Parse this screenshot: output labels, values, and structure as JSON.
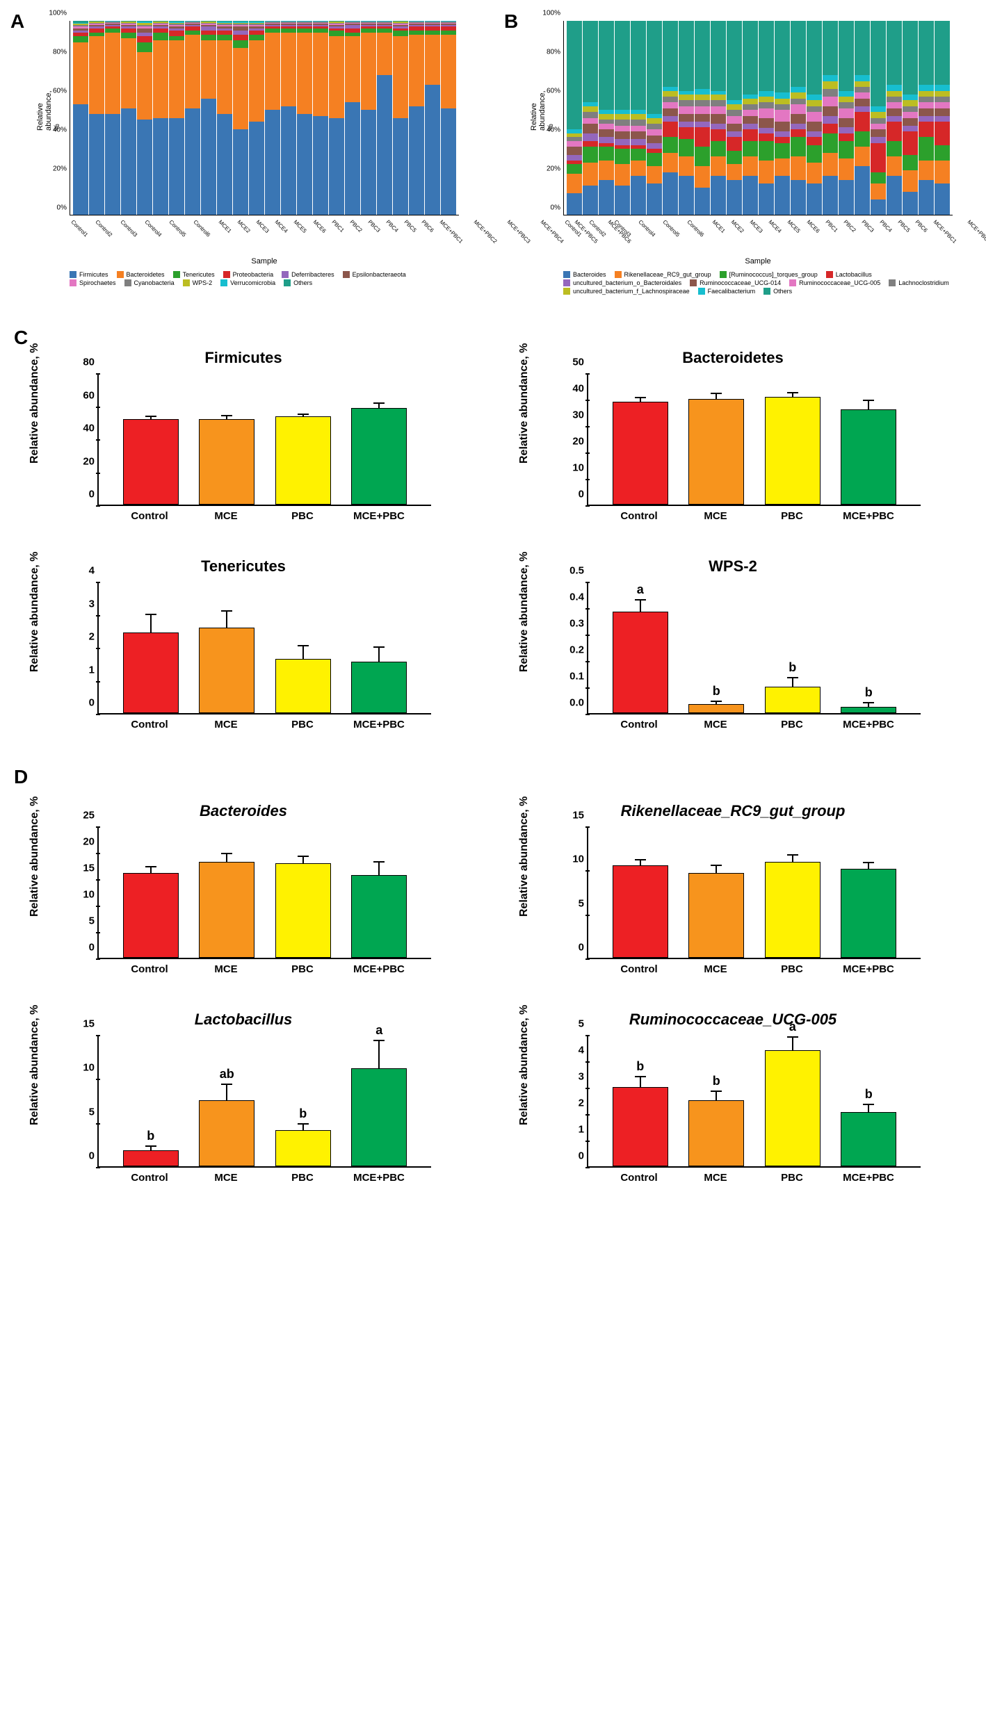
{
  "panelA": {
    "label": "A",
    "y_label": "Relative abundance, %",
    "x_label": "Sample",
    "y_ticks": [
      0,
      20,
      40,
      60,
      80,
      100
    ],
    "y_tick_suffix": "%",
    "samples": [
      "Control1",
      "Control2",
      "Control3",
      "Control4",
      "Control5",
      "Control6",
      "MCE1",
      "MCE2",
      "MCE3",
      "MCE4",
      "MCE5",
      "MCE6",
      "PBC1",
      "PBC2",
      "PBC3",
      "PBC4",
      "PBC5",
      "PBC6",
      "MCE+PBC1",
      "MCE+PBC2",
      "MCE+PBC3",
      "MCE+PBC4",
      "MCE+PBC5",
      "MCE+PBC6"
    ],
    "taxa": [
      "Firmicutes",
      "Bacteroidetes",
      "Tenericutes",
      "Proteobacteria",
      "Deferribacteres",
      "Epsilonbacteraeota",
      "Spirochaetes",
      "Cyanobacteria",
      "WPS-2",
      "Verrucomicrobia",
      "Others"
    ],
    "colors": [
      "#3a76b4",
      "#f58022",
      "#2ca02c",
      "#d62728",
      "#9467bd",
      "#8c564b",
      "#e377c2",
      "#7f7f7f",
      "#bcbd22",
      "#17becf",
      "#1f9e89"
    ],
    "stacks": [
      [
        57,
        32,
        3,
        2,
        1,
        1,
        1,
        1,
        0.5,
        0.5,
        1
      ],
      [
        52,
        40,
        2,
        2,
        1,
        1,
        0.5,
        0.5,
        0.5,
        0.3,
        0.2
      ],
      [
        52,
        42,
        2,
        1,
        1,
        0.5,
        0.5,
        0.5,
        0.2,
        0.2,
        0.1
      ],
      [
        55,
        36,
        3,
        2,
        1,
        1,
        0.5,
        0.5,
        0.5,
        0.3,
        0.2
      ],
      [
        49,
        35,
        5,
        3,
        2,
        2,
        1,
        1,
        1,
        0.5,
        0.5
      ],
      [
        50,
        40,
        4,
        2,
        1,
        1,
        0.5,
        0.5,
        0.5,
        0.3,
        0.2
      ],
      [
        50,
        40,
        2,
        3,
        1,
        1,
        1,
        0.5,
        0.5,
        0.5,
        0.5
      ],
      [
        55,
        38,
        2,
        2,
        1,
        0.5,
        0.5,
        0.5,
        0.2,
        0.2,
        0.1
      ],
      [
        60,
        30,
        3,
        2,
        2,
        1,
        0.5,
        0.5,
        0.5,
        0.3,
        0.2
      ],
      [
        52,
        38,
        3,
        2,
        1,
        1,
        1,
        0.5,
        0.5,
        0.5,
        0.5
      ],
      [
        44,
        42,
        4,
        3,
        2,
        2,
        1,
        0.5,
        0.5,
        0.5,
        0.5
      ],
      [
        48,
        42,
        3,
        2,
        1,
        1,
        1,
        0.5,
        0.5,
        0.5,
        0.5
      ],
      [
        54,
        40,
        2,
        1,
        1,
        0.5,
        0.5,
        0.5,
        0.2,
        0.2,
        0.1
      ],
      [
        56,
        38,
        2,
        1,
        1,
        0.5,
        0.5,
        0.5,
        0.2,
        0.2,
        0.1
      ],
      [
        52,
        42,
        2,
        1,
        1,
        0.5,
        0.5,
        0.5,
        0.2,
        0.2,
        0.1
      ],
      [
        51,
        43,
        2,
        1,
        1,
        0.5,
        0.5,
        0.5,
        0.2,
        0.2,
        0.1
      ],
      [
        50,
        42,
        3,
        1,
        1,
        1,
        0.5,
        0.5,
        0.5,
        0.3,
        0.2
      ],
      [
        58,
        34,
        2,
        2,
        2,
        0.5,
        0.5,
        0.5,
        0.2,
        0.2,
        0.1
      ],
      [
        54,
        40,
        2,
        1,
        1,
        0.5,
        0.5,
        0.5,
        0.2,
        0.2,
        0.1
      ],
      [
        72,
        22,
        2,
        1,
        1,
        0.5,
        0.5,
        0.5,
        0.2,
        0.2,
        0.1
      ],
      [
        50,
        42,
        3,
        1,
        1,
        1,
        0.5,
        0.5,
        0.5,
        0.3,
        0.2
      ],
      [
        56,
        37,
        2,
        2,
        1,
        0.5,
        0.5,
        0.5,
        0.2,
        0.2,
        0.1
      ],
      [
        67,
        26,
        2,
        2,
        1,
        0.5,
        0.5,
        0.5,
        0.2,
        0.2,
        0.1
      ],
      [
        55,
        38,
        2,
        2,
        1,
        0.5,
        0.5,
        0.5,
        0.2,
        0.2,
        0.1
      ]
    ]
  },
  "panelB": {
    "label": "B",
    "y_label": "Relative abundance, %",
    "x_label": "Sample",
    "y_ticks": [
      0,
      20,
      40,
      60,
      80,
      100
    ],
    "y_tick_suffix": "%",
    "samples": [
      "Control1",
      "Control2",
      "Control3",
      "Control4",
      "Control5",
      "Control6",
      "MCE1",
      "MCE2",
      "MCE3",
      "MCE4",
      "MCE5",
      "MCE6",
      "PBC1",
      "PBC2",
      "PBC3",
      "PBC4",
      "PBC5",
      "PBC6",
      "MCE+PBC1",
      "MCE+PBC2",
      "MCE+PBC3",
      "MCE+PBC4",
      "MCE+PBC5",
      "MCE+PBC6"
    ],
    "taxa": [
      "Bacteroides",
      "Rikenellaceae_RC9_gut_group",
      "[Ruminococcus]_torques_group",
      "Lactobacillus",
      "uncultured_bacterium_o_Bacteroidales",
      "Ruminococcaceae_UCG-014",
      "Ruminococcaceae_UCG-005",
      "Lachnoclostridium",
      "uncultured_bacterium_f_Lachnospiraceae",
      "Faecalibacterium",
      "Others"
    ],
    "colors": [
      "#3a76b4",
      "#f58022",
      "#2ca02c",
      "#d62728",
      "#9467bd",
      "#8c564b",
      "#e377c2",
      "#7f7f7f",
      "#bcbd22",
      "#17becf",
      "#1f9e89"
    ],
    "stacks": [
      [
        11,
        10,
        5,
        2,
        3,
        4,
        3,
        2,
        2,
        2,
        56
      ],
      [
        15,
        12,
        8,
        3,
        4,
        5,
        3,
        3,
        3,
        2,
        42
      ],
      [
        18,
        10,
        7,
        2,
        3,
        4,
        3,
        2,
        3,
        2,
        46
      ],
      [
        15,
        11,
        8,
        2,
        3,
        4,
        3,
        3,
        3,
        2,
        46
      ],
      [
        20,
        8,
        6,
        2,
        3,
        4,
        3,
        3,
        3,
        2,
        46
      ],
      [
        16,
        9,
        7,
        2,
        3,
        4,
        3,
        3,
        3,
        2,
        48
      ],
      [
        22,
        10,
        8,
        8,
        3,
        4,
        3,
        3,
        3,
        2,
        34
      ],
      [
        20,
        10,
        9,
        6,
        3,
        4,
        4,
        3,
        3,
        2,
        36
      ],
      [
        14,
        11,
        10,
        10,
        3,
        4,
        4,
        3,
        3,
        3,
        35
      ],
      [
        20,
        10,
        8,
        6,
        3,
        5,
        4,
        3,
        3,
        2,
        36
      ],
      [
        18,
        8,
        7,
        7,
        3,
        4,
        4,
        3,
        3,
        2,
        41
      ],
      [
        20,
        10,
        8,
        6,
        3,
        4,
        3,
        3,
        3,
        2,
        38
      ],
      [
        16,
        12,
        10,
        4,
        3,
        5,
        5,
        3,
        3,
        3,
        36
      ],
      [
        20,
        9,
        8,
        3,
        3,
        5,
        6,
        3,
        3,
        3,
        37
      ],
      [
        18,
        12,
        10,
        4,
        3,
        5,
        5,
        3,
        3,
        3,
        34
      ],
      [
        16,
        11,
        9,
        4,
        3,
        5,
        5,
        3,
        3,
        3,
        38
      ],
      [
        20,
        12,
        10,
        5,
        4,
        5,
        5,
        4,
        4,
        3,
        28
      ],
      [
        18,
        11,
        9,
        4,
        3,
        5,
        5,
        3,
        3,
        3,
        36
      ],
      [
        25,
        10,
        8,
        10,
        3,
        4,
        3,
        3,
        3,
        3,
        28
      ],
      [
        8,
        8,
        6,
        15,
        3,
        4,
        3,
        3,
        3,
        3,
        44
      ],
      [
        20,
        10,
        8,
        10,
        3,
        4,
        3,
        3,
        3,
        3,
        33
      ],
      [
        12,
        11,
        8,
        12,
        3,
        4,
        3,
        3,
        3,
        3,
        38
      ],
      [
        18,
        10,
        12,
        8,
        3,
        4,
        3,
        3,
        3,
        3,
        33
      ],
      [
        16,
        12,
        8,
        12,
        3,
        4,
        3,
        3,
        3,
        3,
        33
      ]
    ]
  },
  "bars": {
    "groups": [
      "Control",
      "MCE",
      "PBC",
      "MCE+PBC"
    ],
    "colors": [
      "#ed2024",
      "#f7941d",
      "#fff200",
      "#00a651"
    ],
    "y_label": "Relative abundance, %",
    "charts": [
      {
        "section": "C",
        "title": "Firmicutes",
        "italic": false,
        "ymax": 80,
        "ystep": 20,
        "values": [
          52,
          52,
          53.5,
          58.5
        ],
        "err": [
          1.5,
          2,
          1.2,
          3
        ],
        "sig": [
          "",
          "",
          "",
          ""
        ]
      },
      {
        "section": "",
        "title": "Bacteroidetes",
        "italic": false,
        "ymax": 50,
        "ystep": 10,
        "values": [
          39,
          40,
          40.8,
          36
        ],
        "err": [
          1.5,
          2,
          1.5,
          3.5
        ],
        "sig": [
          "",
          "",
          "",
          ""
        ]
      },
      {
        "section": "",
        "title": "Tenericutes",
        "italic": false,
        "ymax": 4,
        "ystep": 1,
        "values": [
          2.45,
          2.6,
          1.65,
          1.55
        ],
        "err": [
          0.55,
          0.5,
          0.4,
          0.45
        ],
        "sig": [
          "",
          "",
          "",
          ""
        ]
      },
      {
        "section": "",
        "title": "WPS-2",
        "italic": false,
        "ymax": 0.5,
        "ystep": 0.1,
        "values": [
          0.385,
          0.035,
          0.1,
          0.025
        ],
        "err": [
          0.045,
          0.01,
          0.035,
          0.015
        ],
        "sig": [
          "a",
          "b",
          "b",
          "b"
        ]
      },
      {
        "section": "D",
        "title": "Bacteroides",
        "italic": true,
        "ymax": 25,
        "ystep": 5,
        "values": [
          16,
          18.2,
          17.9,
          15.7
        ],
        "err": [
          1.2,
          1.5,
          1.3,
          2.5
        ],
        "sig": [
          "",
          "",
          "",
          ""
        ]
      },
      {
        "section": "",
        "title": "Rikenellaceae_RC9_gut_group",
        "italic": true,
        "ymax": 15,
        "ystep": 5,
        "values": [
          10.5,
          9.6,
          10.9,
          10.1
        ],
        "err": [
          0.6,
          0.9,
          0.8,
          0.7
        ],
        "sig": [
          "",
          "",
          "",
          ""
        ]
      },
      {
        "section": "",
        "title": "Lactobacillus",
        "italic": true,
        "ymax": 15,
        "ystep": 5,
        "values": [
          1.8,
          7.5,
          4.1,
          11.1
        ],
        "err": [
          0.5,
          1.8,
          0.7,
          3.2
        ],
        "sig": [
          "b",
          "ab",
          "b",
          "a"
        ]
      },
      {
        "section": "",
        "title": "Ruminococcaceae_UCG-005",
        "italic": true,
        "ymax": 5,
        "ystep": 1,
        "values": [
          3.0,
          2.5,
          4.4,
          2.05
        ],
        "err": [
          0.4,
          0.35,
          0.5,
          0.3
        ],
        "sig": [
          "b",
          "b",
          "a",
          "b"
        ]
      }
    ]
  }
}
